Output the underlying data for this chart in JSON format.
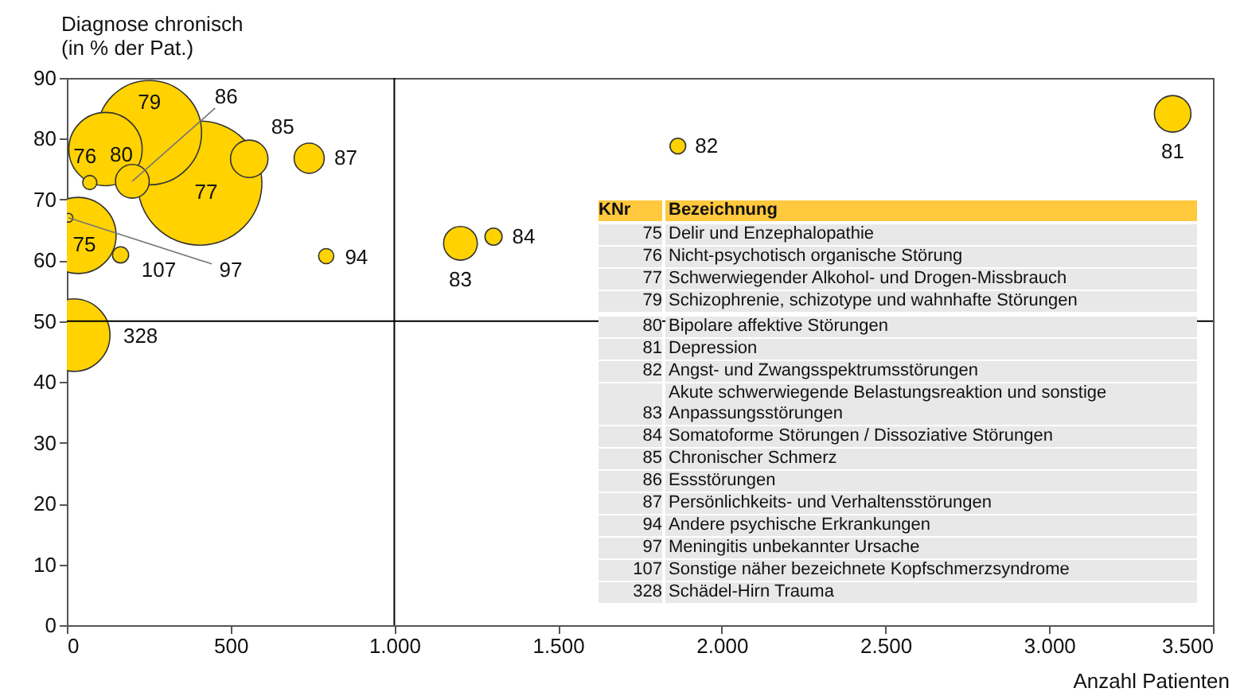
{
  "chart_data": {
    "type": "bubble",
    "xlabel": "Anzahl Patienten",
    "ylabel": "Diagnose chronisch\n(in % der Pat.)",
    "xlim": [
      0,
      3500
    ],
    "xticks": [
      0,
      500,
      {
        "value": 1000,
        "label": "1.000"
      },
      {
        "value": 1500,
        "label": "1.500"
      },
      {
        "value": 2000,
        "label": "2.000"
      },
      {
        "value": 2500,
        "label": "2.500"
      },
      {
        "value": 3000,
        "label": "3.000"
      },
      {
        "value": 3500,
        "label": "3.500"
      }
    ],
    "ylim": [
      0,
      90
    ],
    "yticks": [
      0,
      10,
      20,
      30,
      40,
      50,
      60,
      70,
      80,
      90
    ],
    "grid": false,
    "series": [
      {
        "color": "#ffd200",
        "x": [
          34,
          70,
          406,
          252,
          118,
          3377,
          1866,
          1202,
          1303,
          557,
          200,
          740,
          792,
          5,
          164,
          21
        ],
        "values": [
          64.1,
          72.8,
          72.7,
          81,
          78.3,
          84.1,
          78.8,
          62.8,
          63.9,
          76.7,
          73,
          76.8,
          60.7,
          67,
          60.9,
          47.7
        ],
        "sizes": [
          0.377,
          0.013,
          1,
          0.707,
          0.349,
          0.087,
          0.016,
          0.074,
          0.019,
          0.091,
          0.074,
          0.059,
          0.015,
          0.005,
          0.017,
          0.341
        ]
      }
    ],
    "ref_lines": [
      {
        "axis": "x",
        "value": 1000
      },
      {
        "axis": "y",
        "value": 50
      }
    ],
    "annotations": [
      {
        "text": "75",
        "x": 34,
        "y": 64.1
      },
      {
        "text": "76",
        "x": 70,
        "y": 72.8
      },
      {
        "text": "77",
        "x": 406,
        "y": 72.7
      },
      {
        "text": "79",
        "x": 252,
        "y": 81
      },
      {
        "text": "80",
        "x": 118,
        "y": 78.3
      },
      {
        "text": "81",
        "x": 3377,
        "y": 84.1
      },
      {
        "text": "82",
        "x": 1866,
        "y": 78.8
      },
      {
        "text": "83",
        "x": 1202,
        "y": 62.8
      },
      {
        "text": "84",
        "x": 1303,
        "y": 63.9
      },
      {
        "text": "85",
        "x": 557,
        "y": 76.7
      },
      {
        "text": "86",
        "x": 200,
        "y": 73
      },
      {
        "text": "87",
        "x": 740,
        "y": 76.8
      },
      {
        "text": "94",
        "x": 792,
        "y": 60.7
      },
      {
        "text": "97",
        "x": 5,
        "y": 67
      },
      {
        "text": "107",
        "x": 164,
        "y": 60.9
      },
      {
        "text": "328",
        "x": 21,
        "y": 47.7
      },
      "KNr",
      "Bezeichnung",
      "75",
      "Delir und Enzephalopathie",
      "76",
      "Nicht-psychotisch organische Störung",
      "77",
      "Schwerwiegender Alkohol- und Drogen-Missbrauch",
      "79",
      "Schizophrenie, schizotype und wahnhafte Störungen",
      "80",
      "Bipolare affektive Störungen",
      "81",
      "Depression",
      "82",
      "Angst- und Zwangsspektrumsstörungen",
      "83",
      "Akute schwerwiegende Belastungsreaktion und sonstige\nAnpassungsstörungen",
      "84",
      "Somatoforme Störungen / Dissoziative Störungen",
      "85",
      "Chronischer Schmerz",
      "86",
      "Essstörungen",
      "87",
      "Persönlichkeits- und Verhaltensstörungen",
      "94",
      "Andere psychische Erkrankungen",
      "97",
      "Meningitis unbekannter Ursache",
      "107",
      "Sonstige näher bezeichnete Kopfschmerzsyndrome",
      "328",
      "Schädel-Hirn Trauma"
    ]
  }
}
